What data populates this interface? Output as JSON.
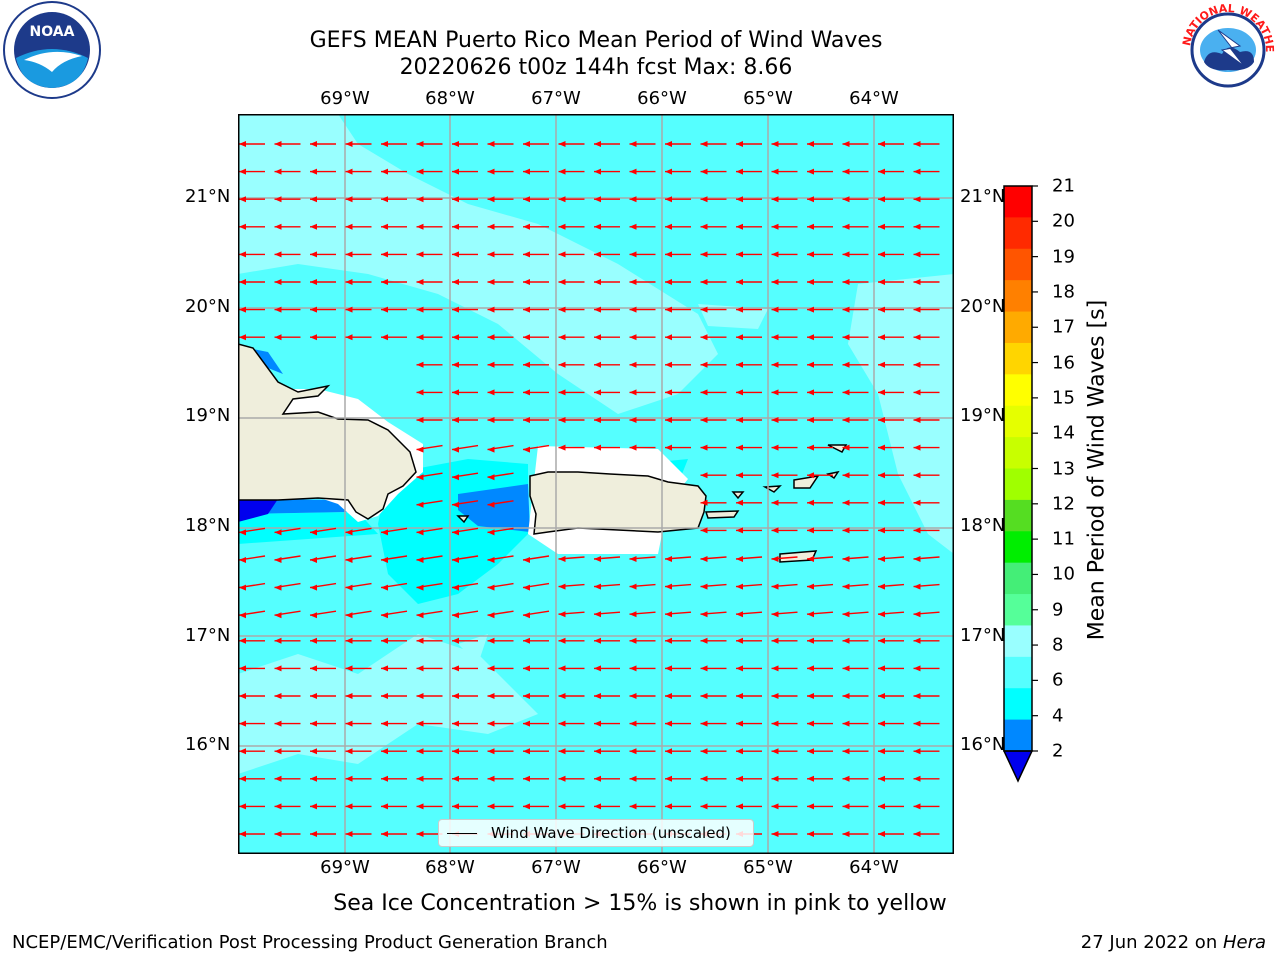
{
  "title_line1": "GEFS MEAN Puerto Rico Mean Period of Wind Waves",
  "title_line2": "20220626 t00z 144h fcst   Max: 8.66",
  "lon_labels": [
    "69°W",
    "68°W",
    "67°W",
    "66°W",
    "65°W",
    "64°W"
  ],
  "lat_labels": [
    "21°N",
    "20°N",
    "19°N",
    "18°N",
    "17°N",
    "16°N"
  ],
  "legend_label": "Wind Wave Direction (unscaled)",
  "subtitle": "Sea Ice Concentration > 15% is shown in pink to yellow",
  "footer_left": "NCEP/EMC/Verification Post Processing Product Generation Branch",
  "footer_right_prefix": "27 Jun 2022 on ",
  "footer_right_host": "Hera",
  "colorbar": {
    "label": "Mean Period of Wind Waves [s]",
    "ticks": [
      "21",
      "20",
      "19",
      "18",
      "17",
      "16",
      "15",
      "14",
      "13",
      "12",
      "11",
      "10",
      "9",
      "8",
      "6",
      "4",
      "2"
    ],
    "colors": [
      "#ff0000",
      "#ff2a00",
      "#ff5500",
      "#ff8000",
      "#ffaa00",
      "#ffd500",
      "#ffff00",
      "#e5ff00",
      "#c8ff00",
      "#a0ff00",
      "#55dd22",
      "#00ee00",
      "#44ee77",
      "#55ff99",
      "#99ffff",
      "#55ffff",
      "#00ffff",
      "#0088ff",
      "#0000ee"
    ]
  },
  "colors": {
    "sea_main": "#55ffff",
    "sea_light": "#99ffff",
    "sea_dark": "#00ffff",
    "sea_blue": "#0088ff",
    "land": "#efeedc",
    "arrow": "#ff0000"
  },
  "logos": {
    "noaa": "NOAA",
    "nws": "NATIONAL WEATHER SERVICE"
  }
}
